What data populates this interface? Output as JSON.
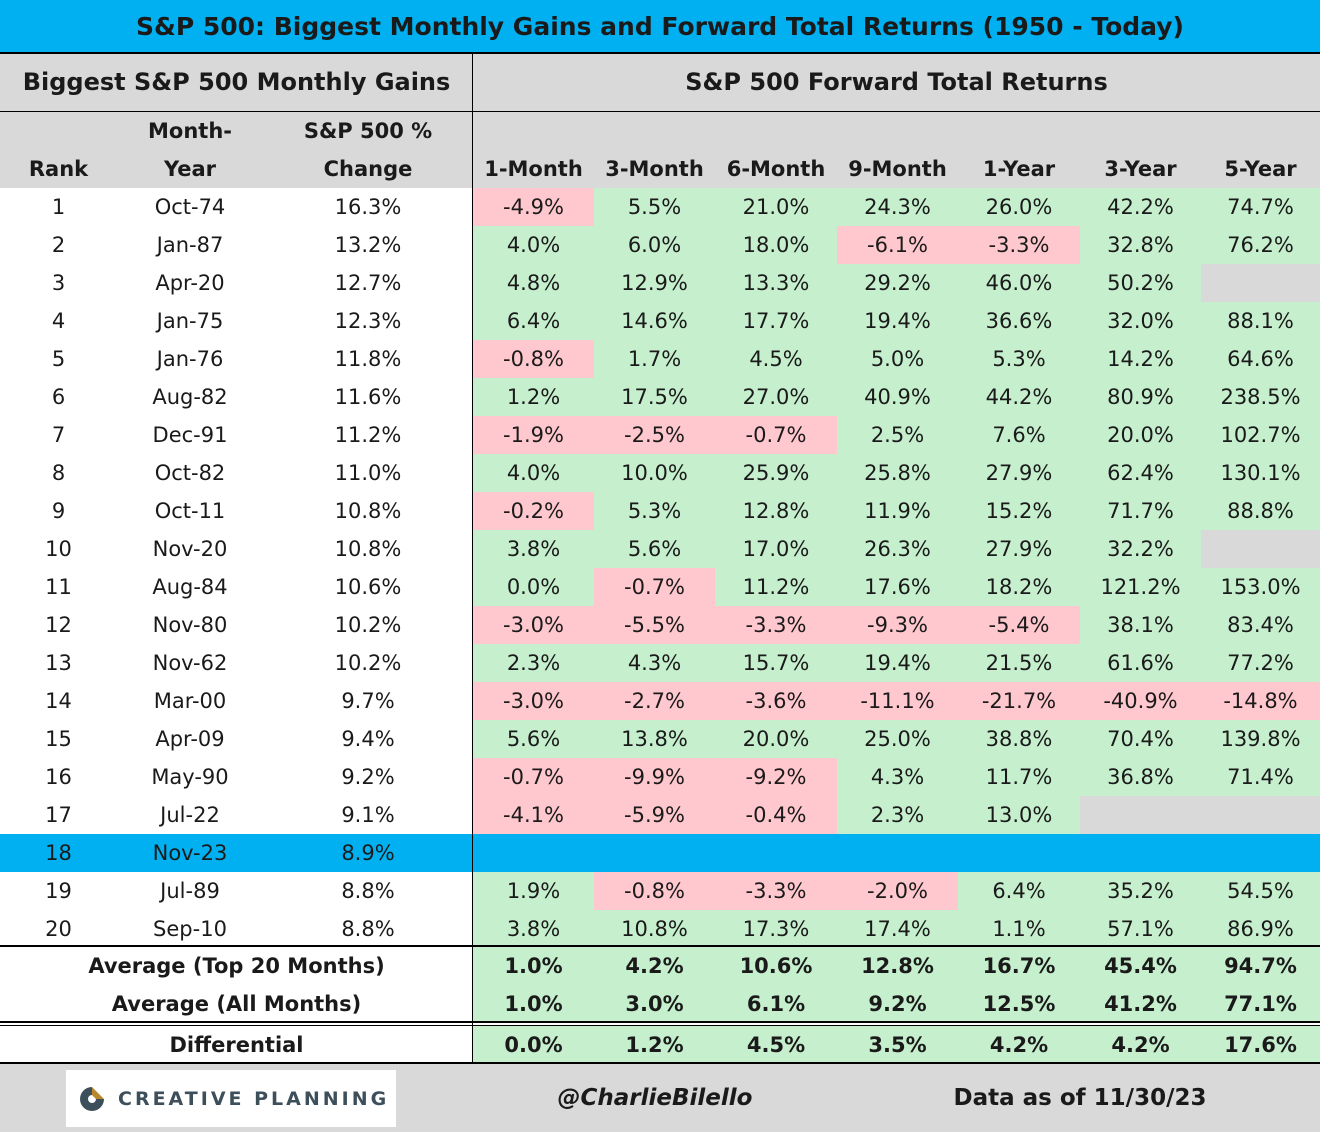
{
  "title": "S&P 500: Biggest Monthly Gains and Forward Total Returns (1950 - Today)",
  "left_header": "Biggest S&P 500 Monthly Gains",
  "right_header": "S&P 500 Forward Total Returns",
  "columns": {
    "rank": "Rank",
    "month_year": [
      "Month-",
      "Year"
    ],
    "change": [
      "S&P 500 %",
      "Change"
    ],
    "forward": [
      "1-Month",
      "3-Month",
      "6-Month",
      "9-Month",
      "1-Year",
      "3-Year",
      "5-Year"
    ]
  },
  "rows": [
    {
      "rank": "1",
      "month": "Oct-74",
      "change": "16.3%",
      "returns": [
        "-4.9%",
        "5.5%",
        "21.0%",
        "24.3%",
        "26.0%",
        "42.2%",
        "74.7%"
      ]
    },
    {
      "rank": "2",
      "month": "Jan-87",
      "change": "13.2%",
      "returns": [
        "4.0%",
        "6.0%",
        "18.0%",
        "-6.1%",
        "-3.3%",
        "32.8%",
        "76.2%"
      ]
    },
    {
      "rank": "3",
      "month": "Apr-20",
      "change": "12.7%",
      "returns": [
        "4.8%",
        "12.9%",
        "13.3%",
        "29.2%",
        "46.0%",
        "50.2%",
        ""
      ]
    },
    {
      "rank": "4",
      "month": "Jan-75",
      "change": "12.3%",
      "returns": [
        "6.4%",
        "14.6%",
        "17.7%",
        "19.4%",
        "36.6%",
        "32.0%",
        "88.1%"
      ]
    },
    {
      "rank": "5",
      "month": "Jan-76",
      "change": "11.8%",
      "returns": [
        "-0.8%",
        "1.7%",
        "4.5%",
        "5.0%",
        "5.3%",
        "14.2%",
        "64.6%"
      ]
    },
    {
      "rank": "6",
      "month": "Aug-82",
      "change": "11.6%",
      "returns": [
        "1.2%",
        "17.5%",
        "27.0%",
        "40.9%",
        "44.2%",
        "80.9%",
        "238.5%"
      ]
    },
    {
      "rank": "7",
      "month": "Dec-91",
      "change": "11.2%",
      "returns": [
        "-1.9%",
        "-2.5%",
        "-0.7%",
        "2.5%",
        "7.6%",
        "20.0%",
        "102.7%"
      ]
    },
    {
      "rank": "8",
      "month": "Oct-82",
      "change": "11.0%",
      "returns": [
        "4.0%",
        "10.0%",
        "25.9%",
        "25.8%",
        "27.9%",
        "62.4%",
        "130.1%"
      ]
    },
    {
      "rank": "9",
      "month": "Oct-11",
      "change": "10.8%",
      "returns": [
        "-0.2%",
        "5.3%",
        "12.8%",
        "11.9%",
        "15.2%",
        "71.7%",
        "88.8%"
      ]
    },
    {
      "rank": "10",
      "month": "Nov-20",
      "change": "10.8%",
      "returns": [
        "3.8%",
        "5.6%",
        "17.0%",
        "26.3%",
        "27.9%",
        "32.2%",
        ""
      ]
    },
    {
      "rank": "11",
      "month": "Aug-84",
      "change": "10.6%",
      "returns": [
        "0.0%",
        "-0.7%",
        "11.2%",
        "17.6%",
        "18.2%",
        "121.2%",
        "153.0%"
      ]
    },
    {
      "rank": "12",
      "month": "Nov-80",
      "change": "10.2%",
      "returns": [
        "-3.0%",
        "-5.5%",
        "-3.3%",
        "-9.3%",
        "-5.4%",
        "38.1%",
        "83.4%"
      ]
    },
    {
      "rank": "13",
      "month": "Nov-62",
      "change": "10.2%",
      "returns": [
        "2.3%",
        "4.3%",
        "15.7%",
        "19.4%",
        "21.5%",
        "61.6%",
        "77.2%"
      ]
    },
    {
      "rank": "14",
      "month": "Mar-00",
      "change": "9.7%",
      "returns": [
        "-3.0%",
        "-2.7%",
        "-3.6%",
        "-11.1%",
        "-21.7%",
        "-40.9%",
        "-14.8%"
      ]
    },
    {
      "rank": "15",
      "month": "Apr-09",
      "change": "9.4%",
      "returns": [
        "5.6%",
        "13.8%",
        "20.0%",
        "25.0%",
        "38.8%",
        "70.4%",
        "139.8%"
      ]
    },
    {
      "rank": "16",
      "month": "May-90",
      "change": "9.2%",
      "returns": [
        "-0.7%",
        "-9.9%",
        "-9.2%",
        "4.3%",
        "11.7%",
        "36.8%",
        "71.4%"
      ]
    },
    {
      "rank": "17",
      "month": "Jul-22",
      "change": "9.1%",
      "returns": [
        "-4.1%",
        "-5.9%",
        "-0.4%",
        "2.3%",
        "13.0%",
        "",
        ""
      ]
    },
    {
      "rank": "18",
      "month": "Nov-23",
      "change": "8.9%",
      "returns": [
        "",
        "",
        "",
        "",
        "",
        "",
        ""
      ],
      "highlight": true
    },
    {
      "rank": "19",
      "month": "Jul-89",
      "change": "8.8%",
      "returns": [
        "1.9%",
        "-0.8%",
        "-3.3%",
        "-2.0%",
        "6.4%",
        "35.2%",
        "54.5%"
      ]
    },
    {
      "rank": "20",
      "month": "Sep-10",
      "change": "8.8%",
      "returns": [
        "3.8%",
        "10.8%",
        "17.3%",
        "17.4%",
        "1.1%",
        "57.1%",
        "86.9%"
      ]
    }
  ],
  "summary": [
    {
      "label": "Average (Top 20 Months)",
      "values": [
        "1.0%",
        "4.2%",
        "10.6%",
        "12.8%",
        "16.7%",
        "45.4%",
        "94.7%"
      ]
    },
    {
      "label": "Average (All Months)",
      "values": [
        "1.0%",
        "3.0%",
        "6.1%",
        "9.2%",
        "12.5%",
        "41.2%",
        "77.1%"
      ]
    },
    {
      "label": "Differential",
      "values": [
        "0.0%",
        "1.2%",
        "4.5%",
        "3.5%",
        "4.2%",
        "4.2%",
        "17.6%"
      ]
    }
  ],
  "footer": {
    "logo_text": "CREATIVE PLANNING",
    "handle": "@CharlieBilello",
    "as_of": "Data as of 11/30/23"
  },
  "colors": {
    "title_bg": "#00b0f0",
    "header_bg": "#d9d9d9",
    "positive_bg": "#c6efce",
    "negative_bg": "#ffc7ce",
    "empty_bg": "#d9d9d9",
    "highlight_bg": "#00b0f0",
    "logo_gold": "#b8892b",
    "logo_slate": "#3e4f5c"
  }
}
